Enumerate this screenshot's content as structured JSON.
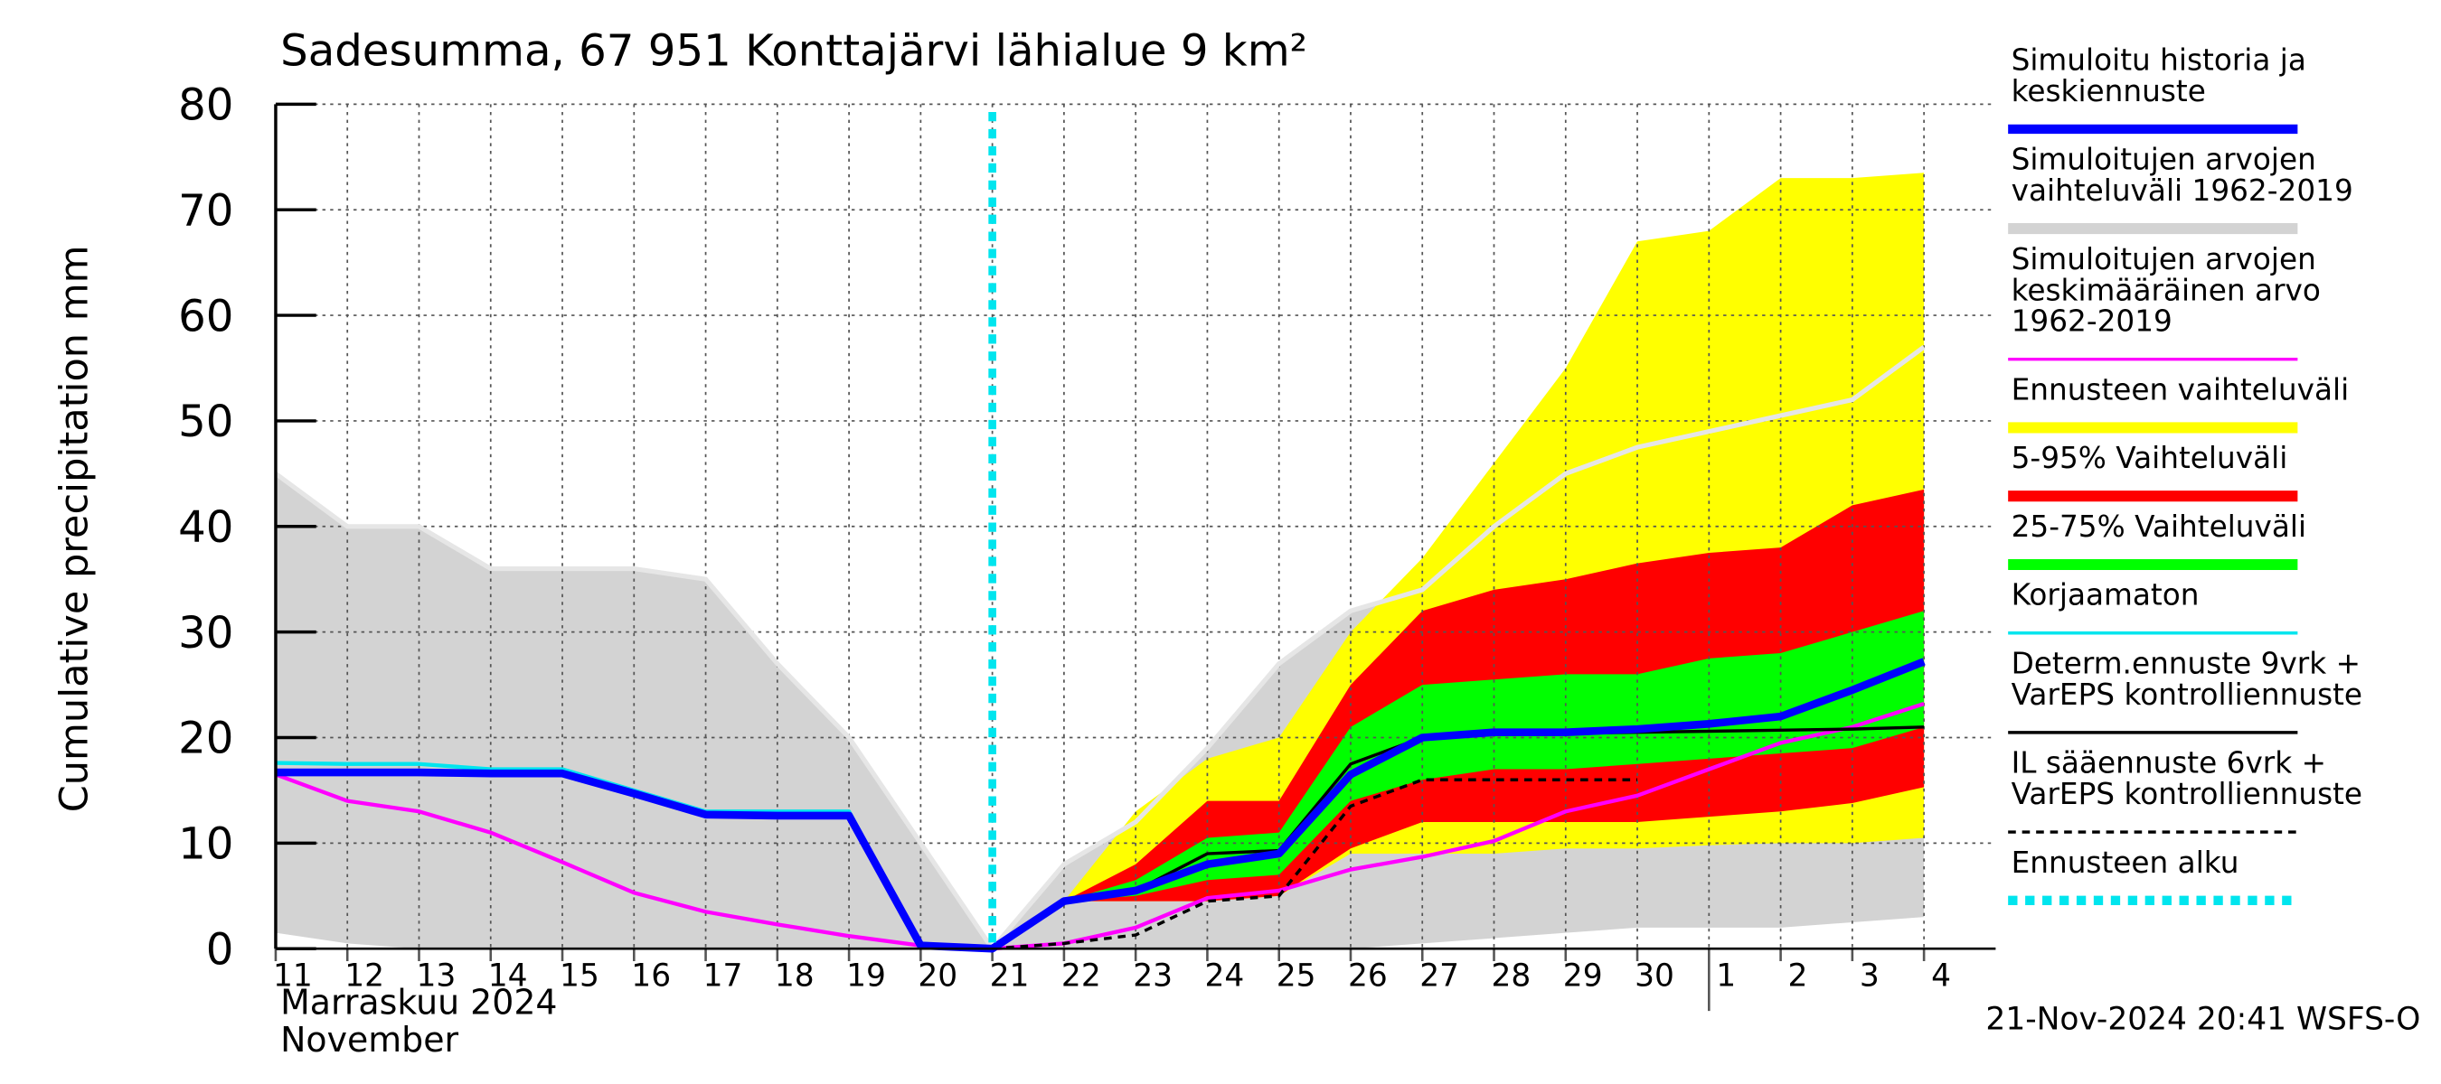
{
  "chart_data": {
    "type": "area-line",
    "title": "Sadesumma, 67 951 Konttajärvi lähialue 9 km²",
    "y_label": "Cumulative precipitation   mm",
    "month_labels": [
      "Marraskuu 2024",
      "November"
    ],
    "footer": "21-Nov-2024 20:41 WSFS-O",
    "categories": [
      "11",
      "12",
      "13",
      "14",
      "15",
      "16",
      "17",
      "18",
      "19",
      "20",
      "21",
      "22",
      "23",
      "24",
      "25",
      "26",
      "27",
      "28",
      "29",
      "30",
      "1",
      "2",
      "3",
      "4"
    ],
    "ylim": [
      0,
      80
    ],
    "yticks": [
      0,
      10,
      20,
      30,
      40,
      50,
      60,
      70,
      80
    ],
    "grid": true,
    "series": [
      {
        "kind": "line",
        "name": [
          "Simuloitu historia ja",
          "keskiennuste"
        ],
        "color": "#0000ff",
        "width": 5,
        "values": [
          16.7,
          16.7,
          16.7,
          16.6,
          16.6,
          14.7,
          12.7,
          12.6,
          12.6,
          0.3,
          0,
          4.5,
          5.5,
          8,
          9,
          16.5,
          20,
          20.5,
          20.5,
          20.8,
          21.3,
          22,
          24.5,
          27.2
        ]
      },
      {
        "kind": "band",
        "name": [
          "Simuloitujen arvojen",
          "vaihteluväli 1962-2019"
        ],
        "color": "#d3d3d3",
        "outline": "#e6e6e6",
        "lower": [
          1.5,
          0.5,
          0,
          0,
          0,
          0,
          0,
          0,
          0,
          0,
          0,
          0,
          0,
          0,
          0,
          0,
          0.5,
          1,
          1.5,
          2,
          2,
          2,
          2.5,
          3
        ],
        "upper": [
          45,
          40,
          40,
          36,
          36,
          36,
          35,
          27,
          20,
          10,
          0,
          8,
          12,
          19,
          27,
          32,
          34,
          40,
          45,
          47.5,
          49,
          50.5,
          52,
          57
        ]
      },
      {
        "kind": "line",
        "name": [
          "Simuloitujen arvojen",
          "keskimääräinen arvo",
          "   1962-2019"
        ],
        "color": "#ff00ff",
        "width": 2.5,
        "values": [
          16.5,
          14,
          13,
          11,
          8.2,
          5.3,
          3.5,
          2.3,
          1.2,
          0.3,
          0,
          0.5,
          2,
          4.8,
          5.5,
          7.5,
          8.7,
          10.2,
          13,
          14.5,
          17,
          19.5,
          21,
          23.2
        ]
      },
      {
        "kind": "band",
        "name": [
          "Ennusteen vaihteluväli"
        ],
        "color": "#ffff00",
        "lower": [
          null,
          null,
          null,
          null,
          null,
          null,
          null,
          null,
          null,
          null,
          0,
          4.5,
          4.5,
          4.5,
          5,
          9,
          9,
          9,
          9.5,
          9.5,
          9.8,
          10,
          10,
          10.5
        ],
        "upper": [
          null,
          null,
          null,
          null,
          null,
          null,
          null,
          null,
          null,
          null,
          0,
          4.5,
          13,
          18,
          20,
          30,
          37,
          46,
          55,
          67,
          68,
          73,
          73,
          73.5
        ]
      },
      {
        "kind": "band",
        "name": [
          "5-95% Vaihteluväli"
        ],
        "color": "#ff0000",
        "lower": [
          null,
          null,
          null,
          null,
          null,
          null,
          null,
          null,
          null,
          null,
          0,
          4.5,
          4.5,
          4.5,
          5,
          9.5,
          12,
          12,
          12,
          12,
          12.5,
          13,
          13.8,
          15.3
        ],
        "upper": [
          null,
          null,
          null,
          null,
          null,
          null,
          null,
          null,
          null,
          null,
          0,
          4.5,
          8,
          14,
          14,
          25,
          32,
          34,
          35,
          36.5,
          37.5,
          38,
          42,
          43.5
        ]
      },
      {
        "kind": "band",
        "name": [
          "25-75% Vaihteluväli"
        ],
        "color": "#00ff00",
        "lower": [
          null,
          null,
          null,
          null,
          null,
          null,
          null,
          null,
          null,
          null,
          0,
          4.5,
          5,
          6.5,
          7,
          14,
          16,
          17,
          17,
          17.5,
          18,
          18.5,
          19,
          21
        ],
        "upper": [
          null,
          null,
          null,
          null,
          null,
          null,
          null,
          null,
          null,
          null,
          0,
          4.5,
          6.5,
          10.5,
          11,
          21,
          25,
          25.5,
          26,
          26,
          27.5,
          28,
          30,
          32
        ]
      },
      {
        "kind": "line",
        "name": [
          "Korjaamaton"
        ],
        "color": "#00e5ee",
        "width": 2.5,
        "values": [
          17.6,
          17.5,
          17.5,
          17,
          17,
          15,
          13,
          13,
          13,
          0.5,
          0,
          null,
          null,
          null,
          null,
          null,
          null,
          null,
          null,
          null,
          null,
          null,
          null,
          null
        ]
      },
      {
        "kind": "line",
        "name": [
          "Determ.ennuste 9vrk +",
          "VarEPS kontrolliennuste"
        ],
        "color": "#000000",
        "width": 2,
        "values": [
          null,
          null,
          null,
          null,
          null,
          null,
          null,
          null,
          null,
          null,
          0,
          4.5,
          5.5,
          9,
          9.3,
          17.5,
          20,
          20.3,
          20.4,
          20.5,
          20.6,
          20.7,
          20.8,
          21
        ]
      },
      {
        "kind": "line",
        "name": [
          "IL sääennuste 6vrk  +",
          "  VarEPS kontrolliennuste"
        ],
        "color": "#000000",
        "width": 2,
        "dash": "5,4",
        "values": [
          null,
          null,
          null,
          null,
          null,
          null,
          null,
          null,
          null,
          null,
          0,
          0.5,
          1.3,
          4.5,
          5,
          13.5,
          16,
          16,
          16,
          16,
          null,
          null,
          null,
          null
        ]
      },
      {
        "kind": "vline",
        "name": [
          "Ennusteen alku"
        ],
        "color": "#00e5ee",
        "width": 5,
        "dash": "6,5",
        "x": "21"
      }
    ]
  }
}
